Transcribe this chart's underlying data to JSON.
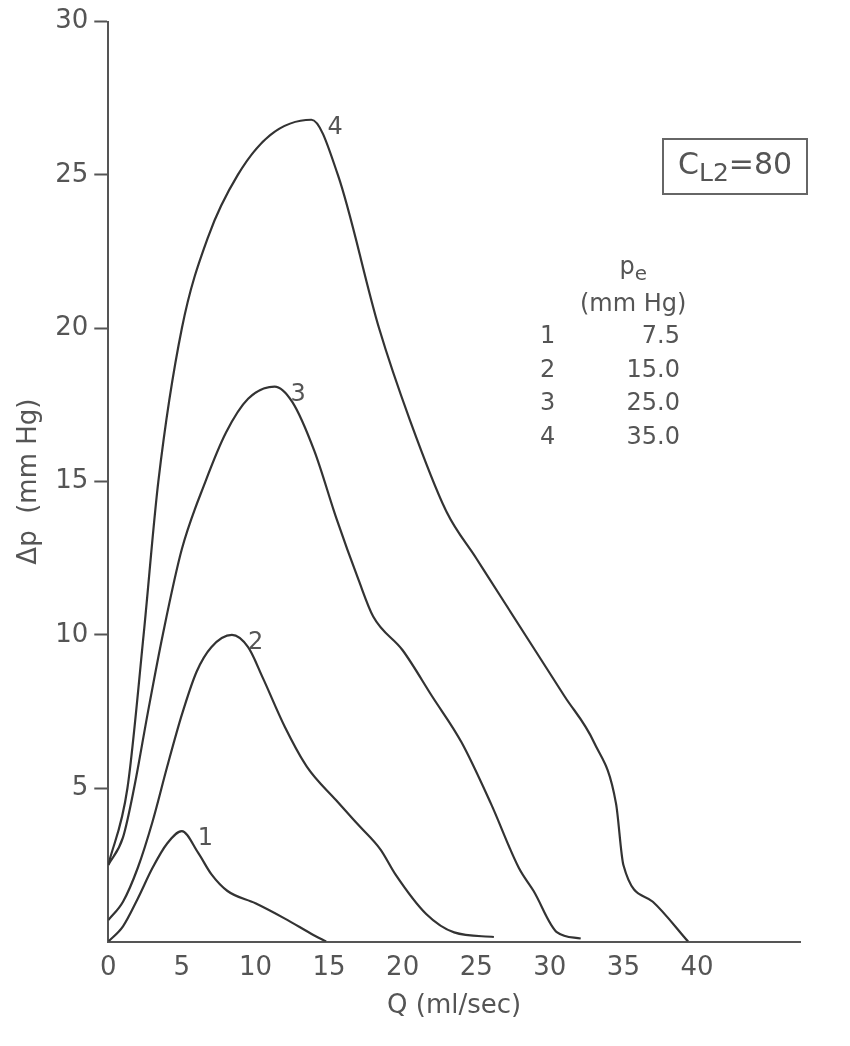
{
  "chart_data": {
    "type": "line",
    "xlabel": "Q (ml/sec)",
    "ylabel": "Δp  (mm Hg)",
    "legend_title": "p$_{e}$\n(mm Hg)",
    "xlim": [
      0,
      47
    ],
    "xticks": [
      0,
      5,
      10,
      15,
      20,
      25,
      30,
      35,
      40
    ],
    "ylim": [
      0,
      30
    ],
    "yticks": [
      5,
      10,
      15,
      20,
      25,
      30
    ],
    "grid": false,
    "legend": false,
    "marker": "none",
    "line_style": "solid",
    "annotations": [
      "C$_{L2}$=80",
      "1 7.5",
      "2 15.0",
      "3 25.0",
      "4 35.0"
    ],
    "series": [
      {
        "name": "1",
        "color": "#333333",
        "x": [
          0,
          1,
          2,
          3,
          4,
          5,
          6.1,
          7,
          8.1,
          10,
          12,
          14,
          14.8
        ],
        "values": [
          0,
          0.5,
          1.4,
          2.4,
          3.2,
          3.6,
          2.9,
          2.2,
          1.65,
          1.25,
          0.75,
          0.2,
          0
        ]
      },
      {
        "name": "2",
        "color": "#333333",
        "x": [
          0,
          1,
          2,
          3,
          4,
          5,
          6,
          7,
          8.4,
          9.5,
          10.5,
          12,
          13.5,
          15.5,
          17,
          18.5,
          19.5,
          21.6,
          23.5,
          26.2
        ],
        "values": [
          0.7,
          1.3,
          2.4,
          3.9,
          5.7,
          7.4,
          8.8,
          9.6,
          10,
          9.6,
          8.6,
          7,
          5.7,
          4.6,
          3.8,
          3,
          2.2,
          0.9,
          0.3,
          0.15
        ]
      },
      {
        "name": "3",
        "color": "#333333",
        "x": [
          0,
          1,
          1.75,
          2.7,
          3.7,
          5,
          6.6,
          8,
          9.5,
          11.3,
          12.5,
          14,
          15.5,
          17,
          18,
          20,
          22,
          24,
          26,
          27.9,
          28.9,
          30.5,
          32.1
        ],
        "values": [
          2.5,
          3.4,
          5,
          7.5,
          10,
          12.8,
          15,
          16.6,
          17.7,
          18.1,
          17.6,
          16,
          13.8,
          11.8,
          10.6,
          9.5,
          8,
          6.5,
          4.5,
          2.4,
          1.65,
          0.3,
          0.1
        ]
      },
      {
        "name": "4",
        "color": "#333333",
        "x": [
          0,
          1.3,
          2.4,
          3.4,
          5,
          6.8,
          8.8,
          11,
          13.8,
          15.6,
          18.4,
          20.5,
          23,
          25,
          27,
          29,
          31,
          33,
          34.5,
          35,
          37,
          39.4
        ],
        "values": [
          2.5,
          5,
          10,
          15,
          20,
          23,
          25,
          26.3,
          26.8,
          25,
          20,
          17,
          14,
          12.5,
          11,
          9.5,
          8,
          6.5,
          4.5,
          2.5,
          1.3,
          0
        ]
      }
    ]
  }
}
